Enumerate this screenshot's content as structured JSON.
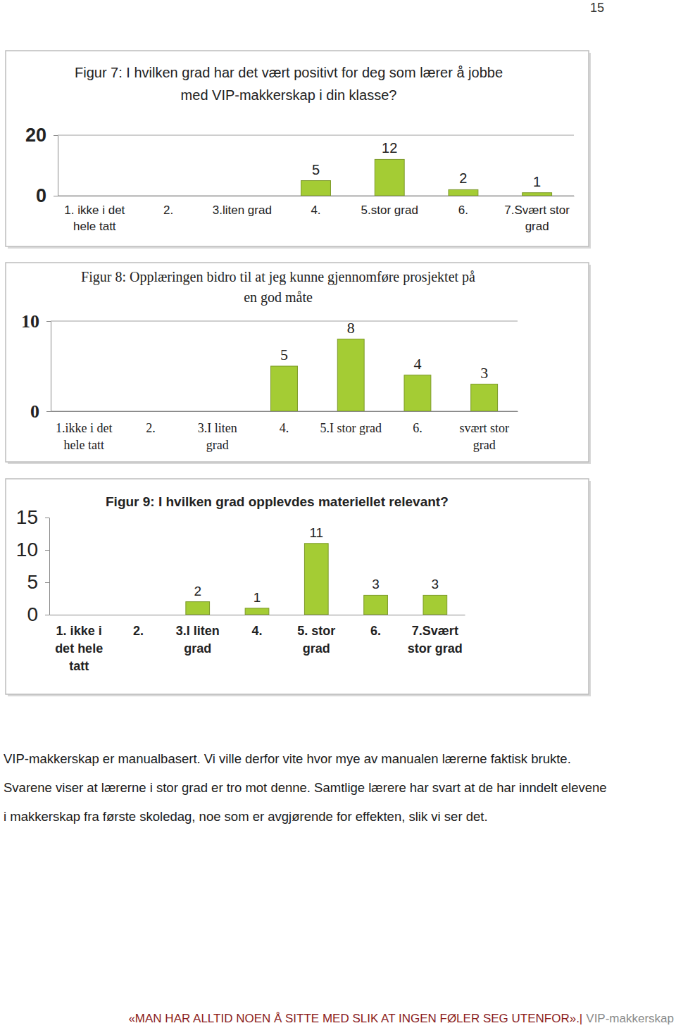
{
  "page_number": "15",
  "chart_data": [
    {
      "type": "bar",
      "title": "Figur 7: I hvilken grad har det vært positivt for deg som lærer å jobbe med VIP-makkerskap i din klasse?",
      "categories": [
        "1. ikke i det hele tatt",
        "2.",
        "3.liten grad",
        "4.",
        "5.stor grad",
        "6.",
        "7.Svært stor grad"
      ],
      "values": [
        null,
        null,
        null,
        5,
        12,
        2,
        1
      ],
      "color": "#a4cc34",
      "ylim": [
        0,
        20
      ],
      "yticks": [
        0,
        20
      ],
      "grid": true,
      "data_labels": true
    },
    {
      "type": "bar",
      "title": "Figur 8: Opplæringen bidro til at jeg kunne gjennomføre prosjektet på en god måte",
      "categories": [
        "1.ikke i det hele tatt",
        "2.",
        "3.I liten grad",
        "4.",
        "5.I stor grad",
        "6.",
        "svært stor grad"
      ],
      "values": [
        null,
        null,
        null,
        5,
        8,
        4,
        3
      ],
      "color": "#a4cc34",
      "ylim": [
        0,
        10
      ],
      "yticks": [
        0,
        10
      ],
      "grid": true,
      "data_labels": true
    },
    {
      "type": "bar",
      "title": "Figur 9: I hvilken grad opplevdes materiellet relevant?",
      "categories": [
        "1. ikke i det hele tatt",
        "2.",
        "3.I liten grad",
        "4.",
        "5. stor grad",
        "6.",
        "7.Svært stor grad"
      ],
      "values": [
        null,
        null,
        2,
        1,
        11,
        3,
        3
      ],
      "color": "#a4cc34",
      "ylim": [
        0,
        15
      ],
      "yticks": [
        0,
        5,
        10,
        15
      ],
      "grid": false,
      "data_labels": true
    }
  ],
  "paragraph": "VIP-makkerskap er manualbasert. Vi ville derfor vite hvor mye av manualen lærerne faktisk brukte. Svarene viser at lærerne i stor grad er tro mot denne. Samtlige lærere har svart at de har inndelt elevene i makkerskap fra første skoledag, noe som er avgjørende for effekten, slik vi ser det.",
  "footer": {
    "quote": "«MAN HAR ALLTID NOEN Å SITTE MED SLIK AT INGEN FØLER SEG UTENFOR».|",
    "label": "VIP-makkerskap"
  }
}
